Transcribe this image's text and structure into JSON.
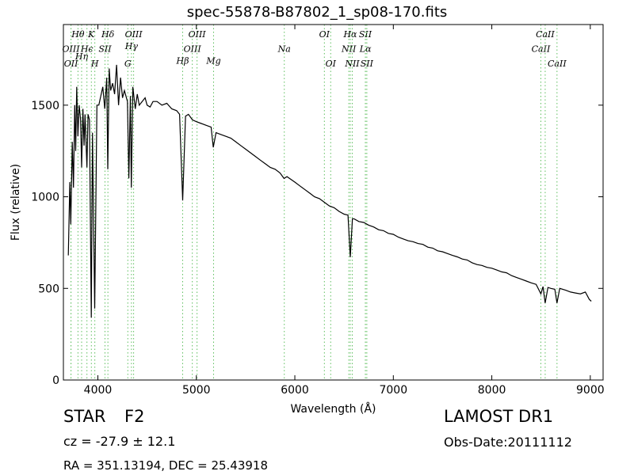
{
  "chart_data": {
    "type": "line",
    "title": "spec-55878-B87802_1_sp08-170.fits",
    "xlabel": "Wavelength (Å)",
    "ylabel": "Flux (relative)",
    "xlim": [
      3650,
      9130
    ],
    "ylim": [
      0,
      1940
    ],
    "xticks": [
      4000,
      5000,
      6000,
      7000,
      8000,
      9000
    ],
    "yticks": [
      0,
      500,
      1000,
      1500
    ],
    "grid": false,
    "series": [
      {
        "color": "#000000",
        "points": [
          [
            3700,
            680
          ],
          [
            3715,
            1080
          ],
          [
            3725,
            850
          ],
          [
            3740,
            1300
          ],
          [
            3752,
            1050
          ],
          [
            3765,
            1500
          ],
          [
            3775,
            1250
          ],
          [
            3785,
            1600
          ],
          [
            3797,
            1330
          ],
          [
            3810,
            1500
          ],
          [
            3825,
            1420
          ],
          [
            3835,
            1160
          ],
          [
            3848,
            1480
          ],
          [
            3860,
            1280
          ],
          [
            3870,
            1450
          ],
          [
            3889,
            1160
          ],
          [
            3900,
            1450
          ],
          [
            3915,
            1420
          ],
          [
            3933,
            340
          ],
          [
            3945,
            1350
          ],
          [
            3968,
            390
          ],
          [
            3990,
            1500
          ],
          [
            4010,
            1500
          ],
          [
            4030,
            1550
          ],
          [
            4050,
            1600
          ],
          [
            4070,
            1480
          ],
          [
            4090,
            1650
          ],
          [
            4101,
            1150
          ],
          [
            4115,
            1700
          ],
          [
            4130,
            1580
          ],
          [
            4150,
            1620
          ],
          [
            4170,
            1560
          ],
          [
            4190,
            1720
          ],
          [
            4210,
            1500
          ],
          [
            4230,
            1650
          ],
          [
            4250,
            1540
          ],
          [
            4270,
            1580
          ],
          [
            4300,
            1520
          ],
          [
            4315,
            1100
          ],
          [
            4330,
            1550
          ],
          [
            4340,
            1050
          ],
          [
            4355,
            1600
          ],
          [
            4380,
            1480
          ],
          [
            4400,
            1560
          ],
          [
            4420,
            1500
          ],
          [
            4450,
            1520
          ],
          [
            4480,
            1540
          ],
          [
            4500,
            1500
          ],
          [
            4530,
            1490
          ],
          [
            4560,
            1520
          ],
          [
            4600,
            1520
          ],
          [
            4650,
            1500
          ],
          [
            4700,
            1510
          ],
          [
            4750,
            1480
          ],
          [
            4800,
            1470
          ],
          [
            4830,
            1450
          ],
          [
            4861,
            980
          ],
          [
            4890,
            1440
          ],
          [
            4920,
            1450
          ],
          [
            4960,
            1420
          ],
          [
            5000,
            1410
          ],
          [
            5050,
            1400
          ],
          [
            5100,
            1390
          ],
          [
            5150,
            1380
          ],
          [
            5172,
            1270
          ],
          [
            5200,
            1350
          ],
          [
            5250,
            1340
          ],
          [
            5300,
            1330
          ],
          [
            5350,
            1320
          ],
          [
            5400,
            1300
          ],
          [
            5450,
            1280
          ],
          [
            5500,
            1260
          ],
          [
            5550,
            1240
          ],
          [
            5600,
            1220
          ],
          [
            5650,
            1200
          ],
          [
            5700,
            1180
          ],
          [
            5750,
            1160
          ],
          [
            5800,
            1150
          ],
          [
            5850,
            1130
          ],
          [
            5890,
            1100
          ],
          [
            5920,
            1110
          ],
          [
            6000,
            1080
          ],
          [
            6050,
            1060
          ],
          [
            6100,
            1040
          ],
          [
            6150,
            1020
          ],
          [
            6200,
            1000
          ],
          [
            6250,
            990
          ],
          [
            6300,
            970
          ],
          [
            6350,
            950
          ],
          [
            6400,
            940
          ],
          [
            6450,
            920
          ],
          [
            6500,
            905
          ],
          [
            6540,
            900
          ],
          [
            6563,
            670
          ],
          [
            6585,
            880
          ],
          [
            6600,
            880
          ],
          [
            6650,
            865
          ],
          [
            6700,
            860
          ],
          [
            6750,
            845
          ],
          [
            6800,
            835
          ],
          [
            6850,
            820
          ],
          [
            6900,
            815
          ],
          [
            6950,
            800
          ],
          [
            7000,
            795
          ],
          [
            7050,
            780
          ],
          [
            7100,
            770
          ],
          [
            7150,
            760
          ],
          [
            7200,
            755
          ],
          [
            7250,
            745
          ],
          [
            7300,
            740
          ],
          [
            7350,
            725
          ],
          [
            7400,
            720
          ],
          [
            7450,
            705
          ],
          [
            7500,
            700
          ],
          [
            7550,
            690
          ],
          [
            7600,
            680
          ],
          [
            7650,
            672
          ],
          [
            7700,
            660
          ],
          [
            7750,
            655
          ],
          [
            7800,
            640
          ],
          [
            7850,
            630
          ],
          [
            7900,
            625
          ],
          [
            7950,
            615
          ],
          [
            8000,
            610
          ],
          [
            8050,
            600
          ],
          [
            8100,
            590
          ],
          [
            8150,
            585
          ],
          [
            8200,
            570
          ],
          [
            8250,
            560
          ],
          [
            8300,
            550
          ],
          [
            8350,
            540
          ],
          [
            8400,
            530
          ],
          [
            8450,
            522
          ],
          [
            8498,
            470
          ],
          [
            8520,
            510
          ],
          [
            8542,
            420
          ],
          [
            8570,
            505
          ],
          [
            8600,
            500
          ],
          [
            8640,
            495
          ],
          [
            8662,
            420
          ],
          [
            8690,
            500
          ],
          [
            8750,
            490
          ],
          [
            8800,
            480
          ],
          [
            8850,
            475
          ],
          [
            8900,
            470
          ],
          [
            8950,
            480
          ],
          [
            8990,
            440
          ],
          [
            9010,
            430
          ]
        ]
      }
    ],
    "line_color": "#5fbf5f",
    "lines": [
      {
        "label": "OII",
        "wave": 3727,
        "row": 2
      },
      {
        "label": "Hθ",
        "wave": 3798,
        "row": 0
      },
      {
        "label": "OIII",
        "wave": 3727,
        "row": 1
      },
      {
        "label": "Hη",
        "wave": 3835,
        "row": 1.5
      },
      {
        "label": "Hϵ",
        "wave": 3889,
        "row": 1
      },
      {
        "label": "K",
        "wave": 3934,
        "row": 0
      },
      {
        "label": "H",
        "wave": 3969,
        "row": 2
      },
      {
        "label": "SII",
        "wave": 4072,
        "row": 1
      },
      {
        "label": "Hδ",
        "wave": 4102,
        "row": 0
      },
      {
        "label": "G",
        "wave": 4304,
        "row": 2
      },
      {
        "label": "Hγ",
        "wave": 4341,
        "row": 0.8
      },
      {
        "label": "OIII",
        "wave": 4363,
        "row": 0
      },
      {
        "label": "Hβ",
        "wave": 4861,
        "row": 1.8
      },
      {
        "label": "OIII",
        "wave": 4959,
        "row": 1
      },
      {
        "label": "OIII",
        "wave": 5007,
        "row": 0
      },
      {
        "label": "Mg",
        "wave": 5175,
        "row": 1.8
      },
      {
        "label": "Na",
        "wave": 5893,
        "row": 1
      },
      {
        "label": "OI",
        "wave": 6300,
        "row": 0
      },
      {
        "label": "OI",
        "wave": 6364,
        "row": 2
      },
      {
        "label": "NII",
        "wave": 6548,
        "row": 1
      },
      {
        "label": "Hα",
        "wave": 6563,
        "row": 0
      },
      {
        "label": "NII",
        "wave": 6583,
        "row": 2
      },
      {
        "label": "SII",
        "wave": 6716,
        "row": 0
      },
      {
        "label": "Lα",
        "wave": 6717,
        "row": 1
      },
      {
        "label": "SII",
        "wave": 6731,
        "row": 2
      },
      {
        "label": "CaII",
        "wave": 8498,
        "row": 1
      },
      {
        "label": "CaII",
        "wave": 8542,
        "row": 0
      },
      {
        "label": "CaII",
        "wave": 8662,
        "row": 2
      }
    ]
  },
  "info": {
    "object_class": "STAR",
    "subclass": "F2",
    "survey": "LAMOST DR1",
    "cz": "cz = -27.9 ± 12.1",
    "obs_date": "Obs-Date:20111112",
    "coords": "RA = 351.13194, DEC = 25.43918"
  }
}
